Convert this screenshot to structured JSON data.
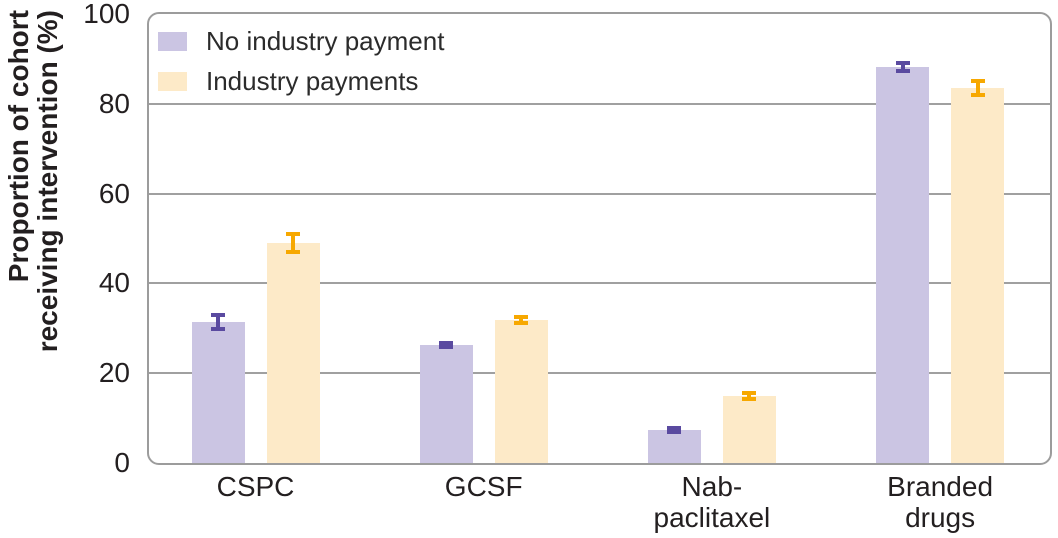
{
  "chart_data": {
    "type": "bar",
    "title": "",
    "ylabel_lines": [
      "Proportion of cohort",
      "receiving intervention (%)"
    ],
    "categories": [
      "CSPC",
      "GCSF",
      "Nab-\npaclitaxel",
      "Branded\ndrugs"
    ],
    "series": [
      {
        "name": "No industry payment",
        "color": "#cbc5e3",
        "error_color": "#5a4aa0",
        "values": [
          31.4,
          26.3,
          7.3,
          88.1
        ],
        "errors": [
          1.6,
          0.4,
          0.4,
          0.9
        ]
      },
      {
        "name": "Industry payments",
        "color": "#fdeac8",
        "error_color": "#f7a800",
        "values": [
          49.0,
          31.9,
          15.0,
          83.5
        ],
        "errors": [
          1.9,
          0.7,
          0.7,
          1.5
        ]
      }
    ],
    "ylim": [
      0,
      100
    ],
    "yticks": [
      0,
      20,
      40,
      60,
      80,
      100
    ],
    "grid": true,
    "legend_position": "top-left-inside"
  },
  "style": {
    "axis_color": "#9c9c9c",
    "grid_color": "#a0a0a0",
    "text_color": "#231f20"
  }
}
